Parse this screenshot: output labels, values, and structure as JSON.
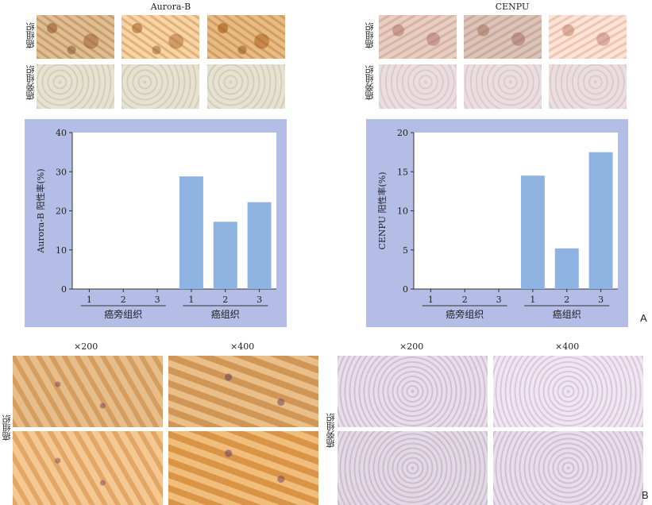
{
  "panelA": {
    "left_title": "Aurora-B",
    "right_title": "CENPU",
    "row_label_tumor": "癌组织",
    "row_label_adjacent": "癌旁组织",
    "letter": "A"
  },
  "panelB": {
    "mag_200": "×200",
    "mag_400": "×400",
    "row_label_tumor": "癌组织",
    "row_label_adjacent": "癌旁组织",
    "letter": "B"
  },
  "chart_data": [
    {
      "type": "bar",
      "ylabel": "Aurora-B 阳性率(%)",
      "ylim": [
        0,
        40
      ],
      "yticks": [
        0,
        10,
        20,
        30,
        40
      ],
      "group_labels": [
        "癌旁组织",
        "癌组织"
      ],
      "categories": [
        "1",
        "2",
        "3",
        "1",
        "2",
        "3"
      ],
      "values": [
        0,
        0,
        0,
        28.8,
        17.2,
        22.2
      ],
      "bar_color": "#8fb3e0",
      "background_color": "#b3bde6"
    },
    {
      "type": "bar",
      "ylabel": "CENPU 阳性率(%)",
      "ylim": [
        0,
        20
      ],
      "yticks": [
        0,
        5,
        10,
        15,
        20
      ],
      "group_labels": [
        "癌旁组织",
        "癌组织"
      ],
      "categories": [
        "1",
        "2",
        "3",
        "1",
        "2",
        "3"
      ],
      "values": [
        0,
        0,
        0,
        14.5,
        5.2,
        17.5
      ],
      "bar_color": "#8fb3e0",
      "background_color": "#b3bde6"
    }
  ]
}
